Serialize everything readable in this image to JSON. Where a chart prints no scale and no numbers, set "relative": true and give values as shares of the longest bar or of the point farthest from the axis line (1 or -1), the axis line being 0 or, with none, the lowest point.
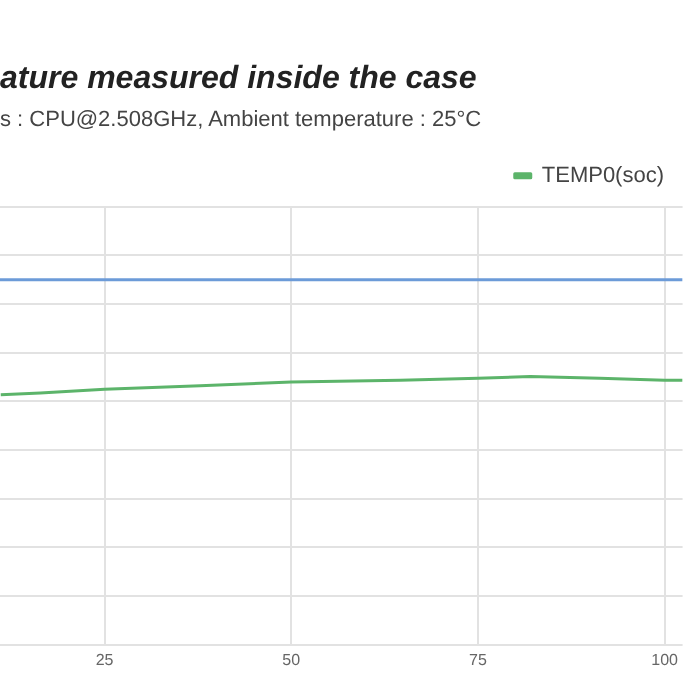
{
  "chart_data": {
    "type": "line",
    "title": "ature measured inside the case",
    "subtitle": "s : CPU@2.508GHz, Ambient temperature : 25°C",
    "relative": true,
    "xlim": [
      11,
      102.4
    ],
    "xticks": [
      25,
      50,
      75,
      100
    ],
    "grid": true,
    "legend": "top right",
    "marker": "none",
    "line_style": "solid",
    "series": [
      {
        "color": "#6c9bd8",
        "x": [
          11,
          102.4
        ],
        "values": [
          1,
          1
        ]
      },
      {
        "name": "TEMP0(soc)",
        "color": "#5cb46a",
        "x": [
          11.1,
          16.4,
          25,
          37.8,
          50,
          64.6,
          75,
          82,
          91.3,
          100,
          102.4
        ],
        "values": [
          0.685,
          0.69,
          0.7,
          0.71,
          0.72,
          0.725,
          0.73,
          0.735,
          0.73,
          0.725,
          0.725
        ]
      }
    ]
  }
}
